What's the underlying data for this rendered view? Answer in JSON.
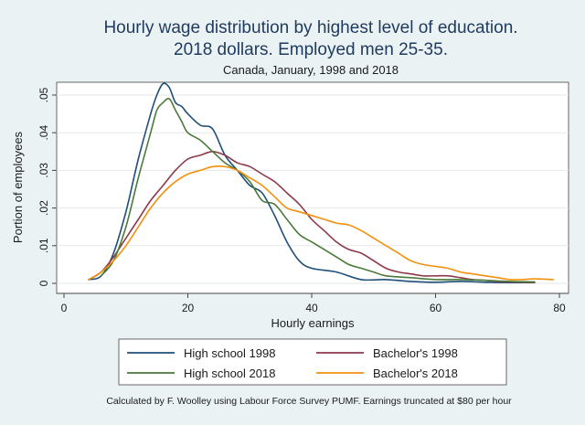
{
  "chart_data": {
    "type": "line",
    "title_line1": "Hourly wage distribution by highest level of education.",
    "title_line2": "2018 dollars. Employed men 25-35.",
    "subtitle": "Canada, January, 1998 and 2018",
    "xlabel": "Hourly earnings",
    "ylabel": "Portion of employees",
    "note": "Calculated by F. Woolley using Labour Force Survey PUMF. Earnings truncated at $80 per hour",
    "xlim": [
      0,
      80
    ],
    "ylim": [
      0,
      0.05
    ],
    "xticks": [
      0,
      20,
      40,
      60,
      80
    ],
    "xtick_labels": [
      "0",
      "20",
      "40",
      "60",
      "80"
    ],
    "yticks": [
      0,
      0.01,
      0.02,
      0.03,
      0.04,
      0.05
    ],
    "ytick_labels": [
      "0",
      ".01",
      ".02",
      ".03",
      ".04",
      ".05"
    ],
    "grid": "horizontal",
    "legend_position": "bottom",
    "series": [
      {
        "name": "High school 1998",
        "color": "#1f4e79",
        "x": [
          4,
          6,
          8,
          10,
          12,
          14,
          15,
          16,
          17,
          18,
          19,
          20,
          22,
          24,
          26,
          28,
          30,
          32,
          34,
          36,
          38,
          40,
          44,
          48,
          52,
          56,
          60,
          64,
          68,
          72,
          76
        ],
        "y": [
          0.001,
          0.002,
          0.008,
          0.019,
          0.033,
          0.045,
          0.05,
          0.053,
          0.052,
          0.048,
          0.047,
          0.045,
          0.042,
          0.041,
          0.034,
          0.03,
          0.026,
          0.024,
          0.018,
          0.011,
          0.006,
          0.004,
          0.003,
          0.001,
          0.001,
          0.0005,
          0.0003,
          0.0005,
          0.0003,
          0.0002,
          0.0002
        ]
      },
      {
        "name": "Bachelor's 1998",
        "color": "#8b3a4a",
        "x": [
          4,
          6,
          8,
          10,
          12,
          14,
          16,
          18,
          20,
          22,
          24,
          26,
          28,
          30,
          32,
          34,
          36,
          38,
          40,
          42,
          44,
          46,
          48,
          50,
          52,
          54,
          56,
          58,
          60,
          62,
          64,
          66,
          68,
          70,
          72,
          76
        ],
        "y": [
          0.001,
          0.003,
          0.007,
          0.012,
          0.017,
          0.022,
          0.026,
          0.03,
          0.033,
          0.034,
          0.035,
          0.034,
          0.032,
          0.031,
          0.029,
          0.027,
          0.024,
          0.021,
          0.017,
          0.014,
          0.011,
          0.009,
          0.008,
          0.006,
          0.004,
          0.003,
          0.0025,
          0.002,
          0.002,
          0.002,
          0.0015,
          0.001,
          0.0008,
          0.0005,
          0.0004,
          0.0002
        ]
      },
      {
        "name": "High school 2018",
        "color": "#4a7a3a",
        "x": [
          6,
          8,
          10,
          12,
          14,
          15,
          16,
          17,
          18,
          19,
          20,
          22,
          24,
          26,
          28,
          30,
          32,
          34,
          36,
          38,
          40,
          42,
          44,
          46,
          48,
          50,
          52,
          56,
          60,
          64,
          68,
          72,
          76
        ],
        "y": [
          0.002,
          0.006,
          0.015,
          0.028,
          0.04,
          0.046,
          0.048,
          0.049,
          0.046,
          0.043,
          0.04,
          0.038,
          0.035,
          0.032,
          0.03,
          0.027,
          0.022,
          0.021,
          0.017,
          0.013,
          0.011,
          0.009,
          0.007,
          0.005,
          0.004,
          0.003,
          0.002,
          0.0015,
          0.001,
          0.001,
          0.0008,
          0.0005,
          0.0004
        ]
      },
      {
        "name": "Bachelor's 2018",
        "color": "#f2900f",
        "x": [
          4,
          6,
          8,
          10,
          12,
          14,
          16,
          18,
          20,
          22,
          24,
          26,
          28,
          30,
          32,
          34,
          36,
          38,
          40,
          42,
          44,
          46,
          48,
          50,
          52,
          54,
          56,
          58,
          60,
          62,
          64,
          66,
          68,
          70,
          72,
          74,
          76,
          79
        ],
        "y": [
          0.001,
          0.003,
          0.006,
          0.01,
          0.015,
          0.02,
          0.024,
          0.027,
          0.029,
          0.03,
          0.031,
          0.031,
          0.03,
          0.028,
          0.026,
          0.023,
          0.02,
          0.019,
          0.018,
          0.017,
          0.016,
          0.0155,
          0.014,
          0.012,
          0.01,
          0.008,
          0.006,
          0.005,
          0.0045,
          0.004,
          0.003,
          0.0025,
          0.002,
          0.0015,
          0.001,
          0.001,
          0.0012,
          0.001
        ]
      }
    ]
  }
}
